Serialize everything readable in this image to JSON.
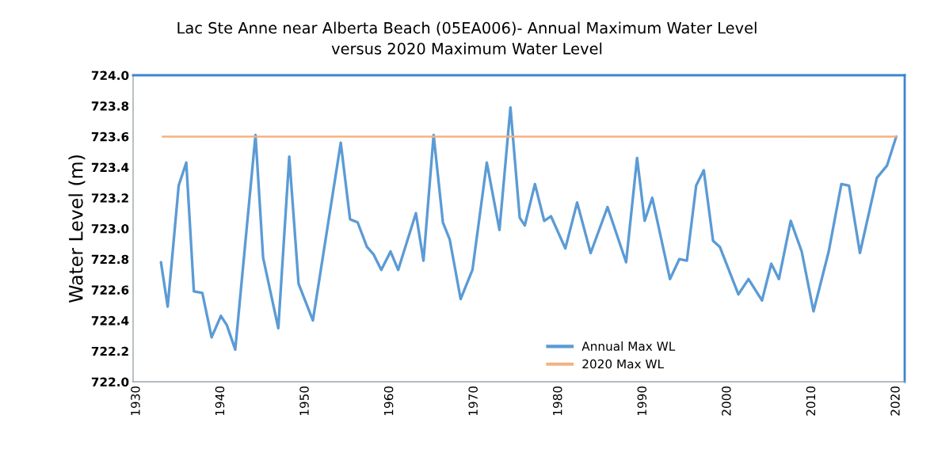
{
  "chart_data": {
    "type": "line",
    "title": "Lac Ste Anne near Alberta Beach (05EA006)- Annual Maximum Water Level\nversus 2020 Maximum Water Level",
    "ylabel": "Water Level (m)",
    "series": [
      {
        "name": "Annual Max WL",
        "color": "#5b9bd5",
        "x": [
          1932.9,
          1933.7,
          1935.0,
          1935.9,
          1936.8,
          1937.8,
          1938.9,
          1940.0,
          1940.7,
          1941.7,
          1944.1,
          1945.0,
          1946.8,
          1948.1,
          1949.2,
          1950.9,
          1954.2,
          1955.3,
          1956.2,
          1957.3,
          1958.1,
          1959.0,
          1960.1,
          1961.0,
          1963.1,
          1964.0,
          1965.2,
          1966.3,
          1967.1,
          1968.4,
          1969.8,
          1971.5,
          1973.0,
          1974.3,
          1975.4,
          1976.0,
          1977.2,
          1978.3,
          1979.1,
          1980.8,
          1982.2,
          1983.8,
          1985.8,
          1988.0,
          1989.3,
          1990.2,
          1991.1,
          1993.2,
          1994.3,
          1995.2,
          1996.3,
          1997.2,
          1998.3,
          1999.1,
          2001.3,
          2002.5,
          2004.1,
          2005.2,
          2006.1,
          2007.5,
          2008.8,
          2010.2,
          2012.0,
          2013.5,
          2014.4,
          2015.7,
          2017.7,
          2018.9,
          2020.0
        ],
        "values": [
          722.78,
          722.49,
          723.28,
          723.43,
          722.59,
          722.58,
          722.29,
          722.43,
          722.37,
          722.21,
          723.61,
          722.81,
          722.35,
          723.47,
          722.64,
          722.4,
          723.56,
          723.06,
          723.04,
          722.88,
          722.83,
          722.73,
          722.85,
          722.73,
          723.1,
          722.79,
          723.61,
          723.04,
          722.93,
          722.54,
          722.73,
          723.43,
          722.99,
          723.79,
          723.07,
          723.02,
          723.29,
          723.05,
          723.08,
          722.87,
          723.17,
          722.84,
          723.14,
          722.78,
          723.46,
          723.05,
          723.2,
          722.67,
          722.8,
          722.79,
          723.28,
          723.38,
          722.92,
          722.88,
          722.57,
          722.67,
          722.53,
          722.77,
          722.67,
          723.05,
          722.85,
          722.46,
          722.85,
          723.29,
          723.28,
          722.84,
          723.33,
          723.41,
          723.6
        ]
      },
      {
        "name": "2020 Max WL",
        "color": "#f4b183",
        "x": [
          1933.1,
          2020.0
        ],
        "values": [
          723.6,
          723.6
        ]
      }
    ],
    "xlim": [
      1929.6,
      2021.0
    ],
    "xticks": [
      1930,
      1940,
      1950,
      1960,
      1970,
      1980,
      1990,
      2000,
      2010,
      2020
    ],
    "ylim": [
      722.0,
      724.0
    ],
    "yticks": [
      {
        "value": 722.0,
        "label": "722.0"
      },
      {
        "value": 722.2,
        "label": "722.2"
      },
      {
        "value": 722.4,
        "label": "722.4"
      },
      {
        "value": 722.6,
        "label": "722.6"
      },
      {
        "value": 722.8,
        "label": "722.8"
      },
      {
        "value": 723.0,
        "label": "723.0"
      },
      {
        "value": 723.2,
        "label": "723.2"
      },
      {
        "value": 723.4,
        "label": "723.4"
      },
      {
        "value": 723.6,
        "label": "723.6"
      },
      {
        "value": 723.8,
        "label": "723.8"
      },
      {
        "value": 724.0,
        "label": "724.0"
      }
    ],
    "legend": "bottom",
    "line_style": "solid"
  }
}
